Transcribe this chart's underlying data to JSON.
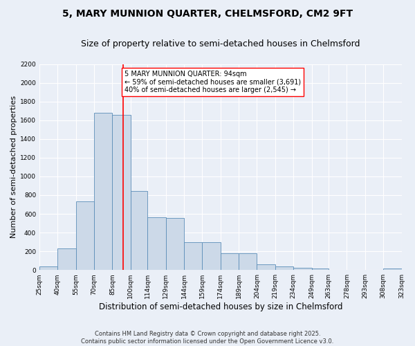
{
  "title": "5, MARY MUNNION QUARTER, CHELMSFORD, CM2 9FT",
  "subtitle": "Size of property relative to semi-detached houses in Chelmsford",
  "xlabel": "Distribution of semi-detached houses by size in Chelmsford",
  "ylabel": "Number of semi-detached properties",
  "bins": [
    25,
    40,
    55,
    70,
    85,
    100,
    114,
    129,
    144,
    159,
    174,
    189,
    204,
    219,
    234,
    249,
    263,
    278,
    293,
    308,
    323
  ],
  "bin_labels": [
    "25sqm",
    "40sqm",
    "55sqm",
    "70sqm",
    "85sqm",
    "100sqm",
    "114sqm",
    "129sqm",
    "144sqm",
    "159sqm",
    "174sqm",
    "189sqm",
    "204sqm",
    "219sqm",
    "234sqm",
    "249sqm",
    "263sqm",
    "278sqm",
    "293sqm",
    "308sqm",
    "323sqm"
  ],
  "counts": [
    40,
    230,
    730,
    1680,
    1660,
    845,
    560,
    555,
    300,
    300,
    180,
    180,
    60,
    35,
    25,
    20,
    0,
    0,
    0,
    15
  ],
  "bar_color": "#ccd9e8",
  "bar_edge_color": "#5b8db8",
  "vline_x": 94,
  "vline_color": "red",
  "annotation_text": "5 MARY MUNNION QUARTER: 94sqm\n← 59% of semi-detached houses are smaller (3,691)\n40% of semi-detached houses are larger (2,545) →",
  "annotation_box_color": "white",
  "annotation_box_edge": "red",
  "ylim": [
    0,
    2200
  ],
  "yticks": [
    0,
    200,
    400,
    600,
    800,
    1000,
    1200,
    1400,
    1600,
    1800,
    2000,
    2200
  ],
  "background_color": "#eaeff7",
  "grid_color": "white",
  "footer": "Contains HM Land Registry data © Crown copyright and database right 2025.\nContains public sector information licensed under the Open Government Licence v3.0.",
  "title_fontsize": 10,
  "subtitle_fontsize": 9,
  "ylabel_fontsize": 8,
  "xlabel_fontsize": 8.5,
  "footer_fontsize": 6,
  "annot_fontsize": 7,
  "tick_fontsize": 6.5
}
